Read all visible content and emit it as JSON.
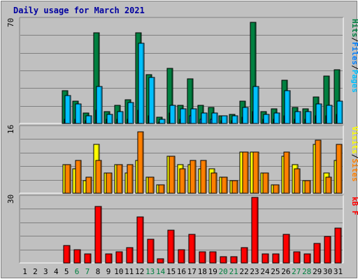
{
  "colors": {
    "page_bg": "#C0C0C0",
    "panel_bg": "#C0C0C0",
    "grid": "#808080",
    "title": "#0000A0",
    "weekday_label": "#000000",
    "weekend_label": "#008040",
    "hits": "#008040",
    "files": "#0080FF",
    "pages": "#00C0FF",
    "visits": "#FFFF00",
    "sites": "#FF8000",
    "kbf": "#FF0000"
  },
  "chart_data": [
    {
      "type": "bar",
      "title": "Daily usage for March 2021",
      "ylim_label": "70",
      "ylim": [
        0,
        70
      ],
      "grid": true,
      "legend": "right",
      "legend_items": [
        {
          "text": "Pages",
          "color_key": "pages"
        },
        {
          "text": "/",
          "color_key": "weekday_label"
        },
        {
          "text": "Files",
          "color_key": "files"
        },
        {
          "text": "/",
          "color_key": "weekday_label"
        },
        {
          "text": "Hits",
          "color_key": "hits"
        }
      ],
      "categories": [
        "1",
        "2",
        "3",
        "4",
        "5",
        "6",
        "7",
        "8",
        "9",
        "10",
        "11",
        "12",
        "13",
        "14",
        "15",
        "16",
        "17",
        "18",
        "19",
        "20",
        "21",
        "22",
        "23",
        "24",
        "25",
        "26",
        "27",
        "28",
        "29",
        "30",
        "31"
      ],
      "series": [
        {
          "name": "Hits",
          "values": [
            0,
            0,
            0,
            0,
            22,
            15,
            7,
            61,
            8,
            12,
            16,
            61,
            33,
            4,
            37,
            12,
            30,
            12,
            11,
            5,
            6,
            15,
            68,
            8,
            10,
            29,
            11,
            10,
            18,
            32,
            36
          ]
        },
        {
          "name": "Files",
          "values": [
            0,
            0,
            0,
            0,
            3,
            3,
            2,
            9,
            3,
            3,
            3,
            9,
            5,
            1,
            7,
            3,
            5,
            3,
            3,
            2,
            2,
            4,
            8,
            3,
            3,
            5,
            3,
            3,
            5,
            5,
            6
          ]
        },
        {
          "name": "Pages",
          "values": [
            0,
            0,
            0,
            0,
            19,
            13,
            5,
            25,
            6,
            8,
            14,
            54,
            31,
            3,
            12,
            10,
            10,
            7,
            7,
            5,
            5,
            11,
            25,
            6,
            7,
            22,
            8,
            8,
            13,
            12,
            15
          ]
        }
      ]
    },
    {
      "type": "bar",
      "ylim_label": "16",
      "ylim": [
        0,
        16
      ],
      "grid": true,
      "legend": "right",
      "legend_items": [
        {
          "text": "Sites",
          "color_key": "sites"
        },
        {
          "text": "/",
          "color_key": "weekday_label"
        },
        {
          "text": "Visits",
          "color_key": "visits"
        }
      ],
      "categories": [
        "1",
        "2",
        "3",
        "4",
        "5",
        "6",
        "7",
        "8",
        "9",
        "10",
        "11",
        "12",
        "13",
        "14",
        "15",
        "16",
        "17",
        "18",
        "19",
        "20",
        "21",
        "22",
        "23",
        "24",
        "25",
        "26",
        "27",
        "28",
        "29",
        "30",
        "31"
      ],
      "series": [
        {
          "name": "Visits",
          "values": [
            0,
            0,
            0,
            0,
            7,
            6,
            3,
            12,
            5,
            7,
            5,
            8,
            4,
            2,
            9,
            7,
            7,
            6,
            6,
            4,
            3,
            10,
            10,
            5,
            2,
            9,
            7,
            3,
            12,
            5,
            8
          ]
        },
        {
          "name": "Sites",
          "values": [
            0,
            0,
            0,
            0,
            7,
            8,
            4,
            8,
            5,
            7,
            7,
            15,
            4,
            2,
            9,
            6,
            8,
            8,
            5,
            4,
            3,
            10,
            10,
            5,
            2,
            10,
            6,
            3,
            13,
            4,
            12
          ]
        }
      ]
    },
    {
      "type": "bar",
      "ylim_label": "30",
      "ylim": [
        0,
        30
      ],
      "grid": true,
      "legend": "right",
      "legend_items": [
        {
          "text": "kB F",
          "color_key": "kbf"
        }
      ],
      "categories": [
        "1",
        "2",
        "3",
        "4",
        "5",
        "6",
        "7",
        "8",
        "9",
        "10",
        "11",
        "12",
        "13",
        "14",
        "15",
        "16",
        "17",
        "18",
        "19",
        "20",
        "21",
        "22",
        "23",
        "24",
        "25",
        "26",
        "27",
        "28",
        "29",
        "30",
        "31"
      ],
      "series": [
        {
          "name": "kB F",
          "values": [
            0,
            0,
            0,
            0,
            8,
            6,
            4,
            26,
            4,
            5,
            7,
            21,
            11,
            2,
            15,
            6,
            13,
            5,
            5,
            3,
            3,
            7,
            30,
            4,
            4,
            13,
            5,
            4,
            9,
            12,
            16
          ]
        }
      ]
    }
  ],
  "x_labels": [
    {
      "text": "1",
      "weekend": false
    },
    {
      "text": "2",
      "weekend": false
    },
    {
      "text": "3",
      "weekend": false
    },
    {
      "text": "4",
      "weekend": false
    },
    {
      "text": "5",
      "weekend": false
    },
    {
      "text": "6",
      "weekend": true
    },
    {
      "text": "7",
      "weekend": true
    },
    {
      "text": "8",
      "weekend": false
    },
    {
      "text": "9",
      "weekend": false
    },
    {
      "text": "10",
      "weekend": false
    },
    {
      "text": "11",
      "weekend": false
    },
    {
      "text": "12",
      "weekend": false
    },
    {
      "text": "13",
      "weekend": true
    },
    {
      "text": "14",
      "weekend": true
    },
    {
      "text": "15",
      "weekend": false
    },
    {
      "text": "16",
      "weekend": false
    },
    {
      "text": "17",
      "weekend": false
    },
    {
      "text": "18",
      "weekend": false
    },
    {
      "text": "19",
      "weekend": false
    },
    {
      "text": "20",
      "weekend": true
    },
    {
      "text": "21",
      "weekend": true
    },
    {
      "text": "22",
      "weekend": false
    },
    {
      "text": "23",
      "weekend": false
    },
    {
      "text": "24",
      "weekend": false
    },
    {
      "text": "25",
      "weekend": false
    },
    {
      "text": "26",
      "weekend": false
    },
    {
      "text": "27",
      "weekend": true
    },
    {
      "text": "28",
      "weekend": true
    },
    {
      "text": "29",
      "weekend": false
    },
    {
      "text": "30",
      "weekend": false
    },
    {
      "text": "31",
      "weekend": false
    }
  ]
}
